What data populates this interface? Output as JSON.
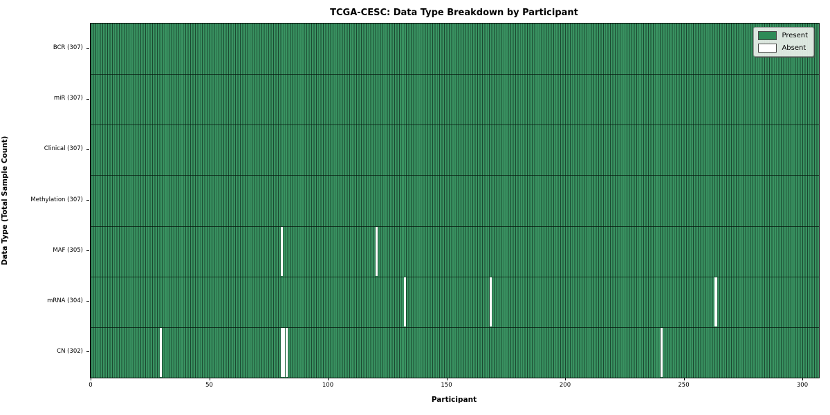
{
  "title": "TCGA-CESC: Data Type Breakdown by Participant",
  "chart_data": {
    "type": "heatmap",
    "title": "TCGA-CESC: Data Type Breakdown by Participant",
    "xlabel": "Participant",
    "ylabel": "Data Type (Total Sample Count)",
    "n_participants": 307,
    "x_ticks": [
      0,
      50,
      100,
      150,
      200,
      250,
      300
    ],
    "xlim": [
      0,
      307
    ],
    "grid": false,
    "legend_position": "upper right",
    "legend": [
      {
        "label": "Present",
        "color": "#2e8b57"
      },
      {
        "label": "Absent",
        "color": "#ffffff"
      }
    ],
    "rows": [
      {
        "label": "BCR (307)",
        "data_type": "BCR",
        "present_count": 307,
        "absent_participants": []
      },
      {
        "label": "miR (307)",
        "data_type": "miR",
        "present_count": 307,
        "absent_participants": []
      },
      {
        "label": "Clinical (307)",
        "data_type": "Clinical",
        "present_count": 307,
        "absent_participants": []
      },
      {
        "label": "Methylation (307)",
        "data_type": "Methylation",
        "present_count": 307,
        "absent_participants": []
      },
      {
        "label": "MAF (305)",
        "data_type": "MAF",
        "present_count": 305,
        "absent_participants": [
          80,
          120
        ]
      },
      {
        "label": "mRNA (304)",
        "data_type": "mRNA",
        "present_count": 304,
        "absent_participants": [
          132,
          168,
          263
        ]
      },
      {
        "label": "CN (302)",
        "data_type": "CN",
        "present_count": 302,
        "absent_participants": [
          29,
          80,
          81,
          82,
          240
        ]
      }
    ],
    "colors": {
      "present_fill": "#399261",
      "cell_edge": "#1b4931",
      "absent_fill": "#ffffff",
      "legend_present": "#2e8b57",
      "background": "#ffffff"
    }
  }
}
